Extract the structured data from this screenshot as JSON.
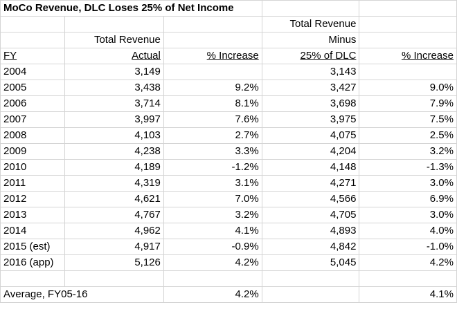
{
  "title": "MoCo Revenue, DLC Loses 25% of Net Income",
  "header": {
    "row1": {
      "col4": "Total Revenue"
    },
    "row2": {
      "col2": "Total Revenue",
      "col4": "Minus"
    },
    "row3": {
      "col1": "FY",
      "col2": "Actual",
      "col3": "% Increase",
      "col4": "25% of DLC",
      "col5": "% Increase"
    }
  },
  "rows": [
    {
      "fy": "2004",
      "actual": "3,149",
      "pct1": "",
      "minus": "3,143",
      "pct2": ""
    },
    {
      "fy": "2005",
      "actual": "3,438",
      "pct1": "9.2%",
      "minus": "3,427",
      "pct2": "9.0%"
    },
    {
      "fy": "2006",
      "actual": "3,714",
      "pct1": "8.1%",
      "minus": "3,698",
      "pct2": "7.9%"
    },
    {
      "fy": "2007",
      "actual": "3,997",
      "pct1": "7.6%",
      "minus": "3,975",
      "pct2": "7.5%"
    },
    {
      "fy": "2008",
      "actual": "4,103",
      "pct1": "2.7%",
      "minus": "4,075",
      "pct2": "2.5%"
    },
    {
      "fy": "2009",
      "actual": "4,238",
      "pct1": "3.3%",
      "minus": "4,204",
      "pct2": "3.2%"
    },
    {
      "fy": "2010",
      "actual": "4,189",
      "pct1": "-1.2%",
      "minus": "4,148",
      "pct2": "-1.3%"
    },
    {
      "fy": "2011",
      "actual": "4,319",
      "pct1": "3.1%",
      "minus": "4,271",
      "pct2": "3.0%"
    },
    {
      "fy": "2012",
      "actual": "4,621",
      "pct1": "7.0%",
      "minus": "4,566",
      "pct2": "6.9%"
    },
    {
      "fy": "2013",
      "actual": "4,767",
      "pct1": "3.2%",
      "minus": "4,705",
      "pct2": "3.0%"
    },
    {
      "fy": "2014",
      "actual": "4,962",
      "pct1": "4.1%",
      "minus": "4,893",
      "pct2": "4.0%"
    },
    {
      "fy": "2015 (est)",
      "actual": "4,917",
      "pct1": "-0.9%",
      "minus": "4,842",
      "pct2": "-1.0%"
    },
    {
      "fy": "2016 (app)",
      "actual": "5,126",
      "pct1": "4.2%",
      "minus": "5,045",
      "pct2": "4.2%"
    }
  ],
  "average": {
    "label": "Average, FY05-16",
    "pct1": "4.2%",
    "pct2": "4.1%"
  }
}
